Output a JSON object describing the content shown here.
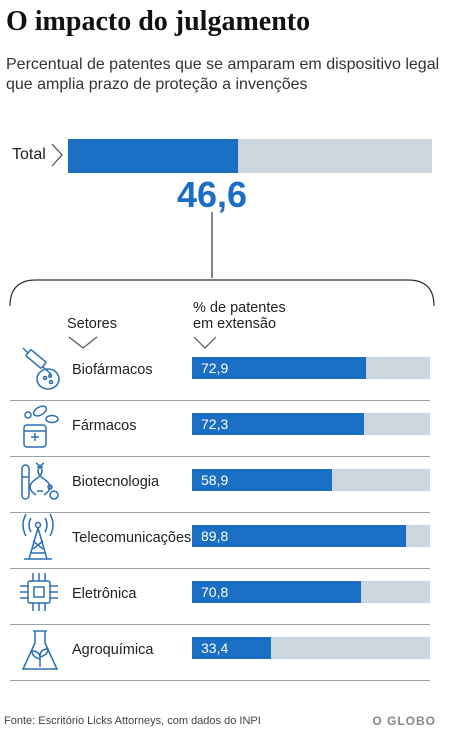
{
  "title": "O impacto do julgamento",
  "subtitle": "Percentual de patentes que se amparam em dispositivo legal  que amplia prazo de proteção a invenções",
  "total": {
    "label": "Total",
    "value": 46.6,
    "value_label": "46,6"
  },
  "headers": {
    "sector": "Setores",
    "percent_line1": "% de patentes",
    "percent_line2": "em extensão"
  },
  "chart_data": {
    "type": "bar",
    "title": "O impacto do julgamento",
    "subtitle": "Percentual de patentes que se amparam em dispositivo legal  que amplia prazo de proteção a invenções",
    "xlabel": "Setores",
    "ylabel": "% de patentes em extensão",
    "ylim": [
      0,
      100
    ],
    "total": 46.6,
    "categories": [
      "Biofármacos",
      "Fármacos",
      "Biotecnologia",
      "Telecomunicações",
      "Eletrônica",
      "Agroquímica"
    ],
    "values": [
      72.9,
      72.3,
      58.9,
      89.8,
      70.8,
      33.4
    ],
    "value_labels": [
      "72,9",
      "72,3",
      "58,9",
      "89,8",
      "70,8",
      "33,4"
    ],
    "icons": [
      "syringe-icon",
      "pills-icon",
      "dna-tubes-icon",
      "antenna-tower-icon",
      "chip-icon",
      "plant-flask-icon"
    ],
    "colors": {
      "fill": "#1a6fc4",
      "track": "#cbd6dd"
    }
  },
  "sectors": [
    {
      "name": "Biofármacos",
      "value_label": "72,9"
    },
    {
      "name": "Fármacos",
      "value_label": "72,3"
    },
    {
      "name": "Biotecnologia",
      "value_label": "58,9"
    },
    {
      "name": "Telecomunicações",
      "value_label": "89,8"
    },
    {
      "name": "Eletrônica",
      "value_label": "70,8"
    },
    {
      "name": "Agroquímica",
      "value_label": "33,4"
    }
  ],
  "footer": {
    "source": "Fonte: Escritório Licks Attorneys, com dados do INPI",
    "logo": "O GLOBO"
  }
}
